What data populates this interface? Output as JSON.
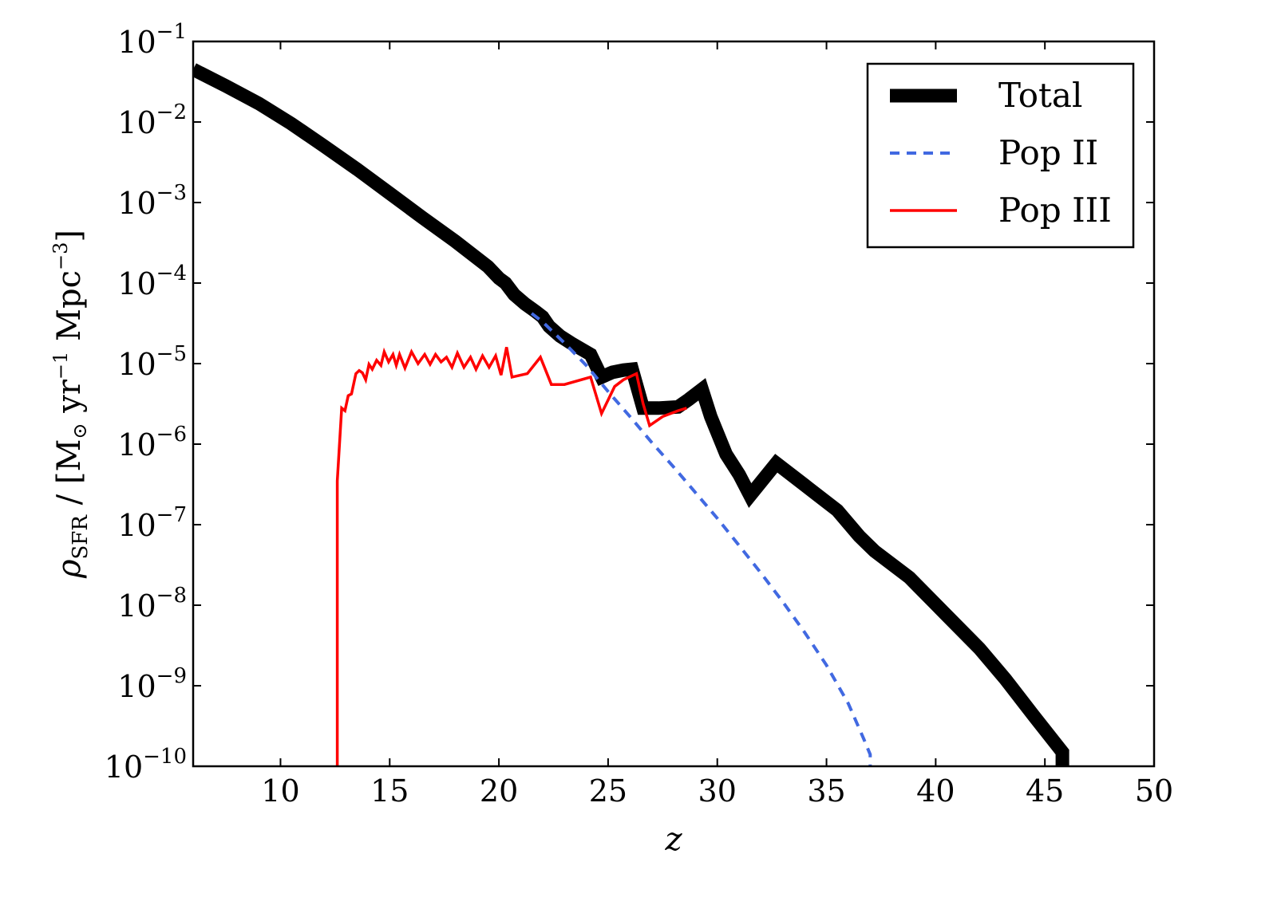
{
  "chart_data": {
    "type": "line",
    "title": "",
    "xlabel": "z",
    "ylabel": {
      "prefix": "ρ",
      "sub": "SFR",
      "unit_lead": " / [M",
      "unit_sun": "⊙",
      "unit_mid": " yr",
      "unit_exp1": "−1",
      "unit_mpc": " Mpc",
      "unit_exp2": "−3",
      "unit_end": "]"
    },
    "xlim": [
      6,
      50
    ],
    "ylim": [
      1e-10,
      0.1
    ],
    "yscale": "log",
    "grid": false,
    "legend_position": "top-right",
    "x_ticks": [
      10,
      15,
      20,
      25,
      30,
      35,
      40,
      45,
      50
    ],
    "x_tick_labels": [
      "10",
      "15",
      "20",
      "25",
      "30",
      "35",
      "40",
      "45",
      "50"
    ],
    "y_ticks": [
      {
        "value": 1e-10,
        "base": "10",
        "exp": "−10"
      },
      {
        "value": 1e-09,
        "base": "10",
        "exp": "−9"
      },
      {
        "value": 1e-08,
        "base": "10",
        "exp": "−8"
      },
      {
        "value": 1e-07,
        "base": "10",
        "exp": "−7"
      },
      {
        "value": 1e-06,
        "base": "10",
        "exp": "−6"
      },
      {
        "value": 1e-05,
        "base": "10",
        "exp": "−5"
      },
      {
        "value": 0.0001,
        "base": "10",
        "exp": "−4"
      },
      {
        "value": 0.001,
        "base": "10",
        "exp": "−3"
      },
      {
        "value": 0.01,
        "base": "10",
        "exp": "−2"
      },
      {
        "value": 0.1,
        "base": "10",
        "exp": "−1"
      }
    ],
    "series": [
      {
        "name": "Total",
        "color": "#000000",
        "style": "solid-thick",
        "points": [
          [
            6.0,
            0.045
          ],
          [
            7.5,
            0.028
          ],
          [
            9.0,
            0.017
          ],
          [
            10.5,
            0.0095
          ],
          [
            12.0,
            0.005
          ],
          [
            13.5,
            0.0026
          ],
          [
            15.0,
            0.0013
          ],
          [
            16.5,
            0.00065
          ],
          [
            18.0,
            0.00033
          ],
          [
            19.5,
            0.00016
          ],
          [
            20.0,
            0.000115
          ],
          [
            20.3,
            0.0001
          ],
          [
            20.7,
            7.2e-05
          ],
          [
            21.2,
            5.5e-05
          ],
          [
            21.7,
            4.4e-05
          ],
          [
            22.0,
            3.8e-05
          ],
          [
            22.3,
            2.9e-05
          ],
          [
            22.8,
            2.2e-05
          ],
          [
            23.3,
            1.8e-05
          ],
          [
            23.8,
            1.5e-05
          ],
          [
            24.2,
            1.3e-05
          ],
          [
            24.7,
            6.8e-06
          ],
          [
            25.2,
            7.8e-06
          ],
          [
            25.7,
            8.3e-06
          ],
          [
            26.1,
            8.5e-06
          ],
          [
            26.6,
            2.8e-06
          ],
          [
            27.3,
            2.8e-06
          ],
          [
            28.2,
            2.9e-06
          ],
          [
            28.7,
            3.6e-06
          ],
          [
            29.3,
            4.8e-06
          ],
          [
            29.7,
            2.2e-06
          ],
          [
            30.4,
            7.5e-07
          ],
          [
            31.0,
            4.2e-07
          ],
          [
            31.5,
            2.3e-07
          ],
          [
            32.7,
            5.8e-07
          ],
          [
            34.0,
            3.1e-07
          ],
          [
            35.5,
            1.5e-07
          ],
          [
            36.5,
            7.2e-08
          ],
          [
            37.2,
            4.7e-08
          ],
          [
            38.8,
            2.2e-08
          ],
          [
            40.5,
            7.5e-09
          ],
          [
            42.0,
            2.9e-09
          ],
          [
            43.2,
            1.2e-09
          ],
          [
            44.5,
            4.2e-10
          ],
          [
            45.8,
            1.5e-10
          ],
          [
            45.8,
            1e-10
          ]
        ]
      },
      {
        "name": "Pop II",
        "color": "#4169e1",
        "style": "dashed",
        "points": [
          [
            21.5,
            4.2e-05
          ],
          [
            22.0,
            3.3e-05
          ],
          [
            23.0,
            1.8e-05
          ],
          [
            24.0,
            9.5e-06
          ],
          [
            25.0,
            4.5e-06
          ],
          [
            26.0,
            2.2e-06
          ],
          [
            27.0,
            1.05e-06
          ],
          [
            28.0,
            5.2e-07
          ],
          [
            29.0,
            2.5e-07
          ],
          [
            30.0,
            1.2e-07
          ],
          [
            31.0,
            5.5e-08
          ],
          [
            32.0,
            2.5e-08
          ],
          [
            33.0,
            1.1e-08
          ],
          [
            34.0,
            4.6e-09
          ],
          [
            35.0,
            1.8e-09
          ],
          [
            36.0,
            6e-10
          ],
          [
            36.7,
            2.2e-10
          ],
          [
            37.0,
            1.4e-10
          ],
          [
            37.0,
            1e-10
          ]
        ]
      },
      {
        "name": "Pop III",
        "color": "#ff0000",
        "style": "solid",
        "points": [
          [
            12.6,
            1e-10
          ],
          [
            12.6,
            3.5e-07
          ],
          [
            12.8,
            2.8e-06
          ],
          [
            12.95,
            2.6e-06
          ],
          [
            13.1,
            4e-06
          ],
          [
            13.25,
            4.2e-06
          ],
          [
            13.45,
            7.5e-06
          ],
          [
            13.6,
            8.2e-06
          ],
          [
            13.75,
            7.7e-06
          ],
          [
            13.9,
            6.3e-06
          ],
          [
            14.05,
            9.8e-06
          ],
          [
            14.2,
            8.5e-06
          ],
          [
            14.4,
            1.1e-05
          ],
          [
            14.6,
            9.5e-06
          ],
          [
            14.75,
            1.4e-05
          ],
          [
            14.95,
            1.05e-05
          ],
          [
            15.15,
            1.3e-05
          ],
          [
            15.3,
            9.5e-06
          ],
          [
            15.45,
            1.3e-05
          ],
          [
            15.7,
            8.8e-06
          ],
          [
            16.0,
            1.4e-05
          ],
          [
            16.3,
            1e-05
          ],
          [
            16.6,
            1.3e-05
          ],
          [
            16.85,
            9.8e-06
          ],
          [
            17.1,
            1.3e-05
          ],
          [
            17.35,
            1.05e-05
          ],
          [
            17.6,
            1.2e-05
          ],
          [
            17.85,
            9e-06
          ],
          [
            18.1,
            1.35e-05
          ],
          [
            18.4,
            9e-06
          ],
          [
            18.7,
            1.2e-05
          ],
          [
            18.95,
            8.5e-06
          ],
          [
            19.25,
            1.25e-05
          ],
          [
            19.55,
            9e-06
          ],
          [
            19.85,
            1.25e-05
          ],
          [
            20.1,
            7.2e-06
          ],
          [
            20.35,
            1.6e-05
          ],
          [
            20.6,
            6.8e-06
          ],
          [
            21.3,
            7.5e-06
          ],
          [
            21.9,
            1.2e-05
          ],
          [
            22.4,
            5.5e-06
          ],
          [
            23.0,
            5.5e-06
          ],
          [
            24.2,
            6.8e-06
          ],
          [
            24.7,
            2.4e-06
          ],
          [
            25.3,
            5.2e-06
          ],
          [
            25.7,
            6.3e-06
          ],
          [
            26.3,
            7.5e-06
          ],
          [
            26.6,
            3.2e-06
          ],
          [
            26.9,
            1.7e-06
          ],
          [
            27.5,
            2.2e-06
          ],
          [
            28.2,
            2.6e-06
          ],
          [
            28.6,
            2.8e-06
          ]
        ]
      }
    ]
  }
}
